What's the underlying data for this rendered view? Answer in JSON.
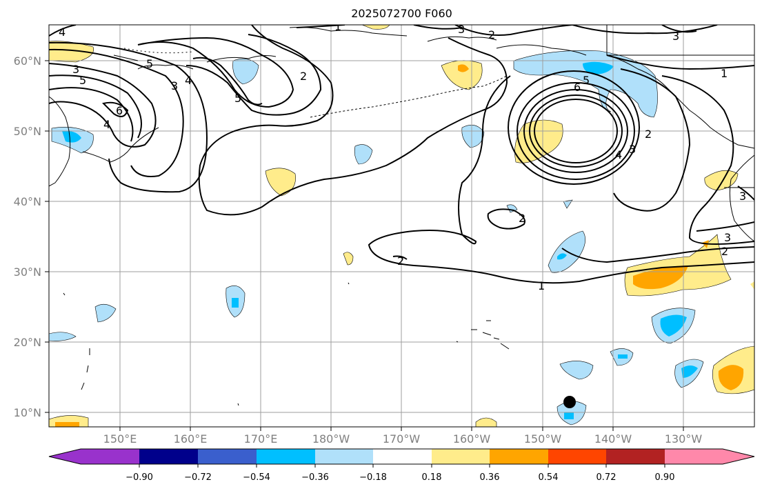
{
  "title": "2025072700 F060",
  "latitude_labels": [
    "60°N",
    "50°N",
    "40°N",
    "30°N",
    "20°N",
    "10°N"
  ],
  "longitude_labels": [
    "150°E",
    "160°E",
    "170°E",
    "180°W",
    "170°W",
    "160°W",
    "150°W",
    "140°W",
    "130°W"
  ],
  "colorbar": {
    "colors": [
      "#9932cc",
      "#00008b",
      "#3a5fcd",
      "#00bfff",
      "#b0e0fa",
      "#ffffff",
      "#ffec8b",
      "#ffa500",
      "#ff4500",
      "#b22222",
      "#ff88aa"
    ],
    "tick_labels": [
      "−0.90",
      "−0.72",
      "−0.54",
      "−0.36",
      "−0.18",
      "0.18",
      "0.36",
      "0.54",
      "0.72",
      "0.90"
    ]
  },
  "contour_labels": {
    "nw_4": "4",
    "nw_3": "3",
    "nw_5a": "5",
    "nw_6": "6",
    "nw_4b": "4",
    "c_5": "5",
    "c_3": "3",
    "c_4": "4",
    "c_5b": "5",
    "c_2": "2",
    "top_1": "1",
    "top_3": "3",
    "top_2": "2",
    "ne_3": "3",
    "ne_1": "1",
    "gulf_6": "6",
    "gulf_5": "5",
    "gulf_4": "4",
    "gulf_3": "3",
    "gulf_2": "2",
    "mid_2a": "2",
    "mid_2b": "2",
    "e_3": "3",
    "e_2": "2",
    "e_3b": "3",
    "low_1": "1"
  },
  "map_colors": {
    "light_blue": "#b0e0fa",
    "blue": "#00bfff",
    "light_yellow": "#ffec8b",
    "orange": "#ffa500",
    "grid": "#9e9e9e"
  },
  "marker_icon": "black-dot-marker"
}
